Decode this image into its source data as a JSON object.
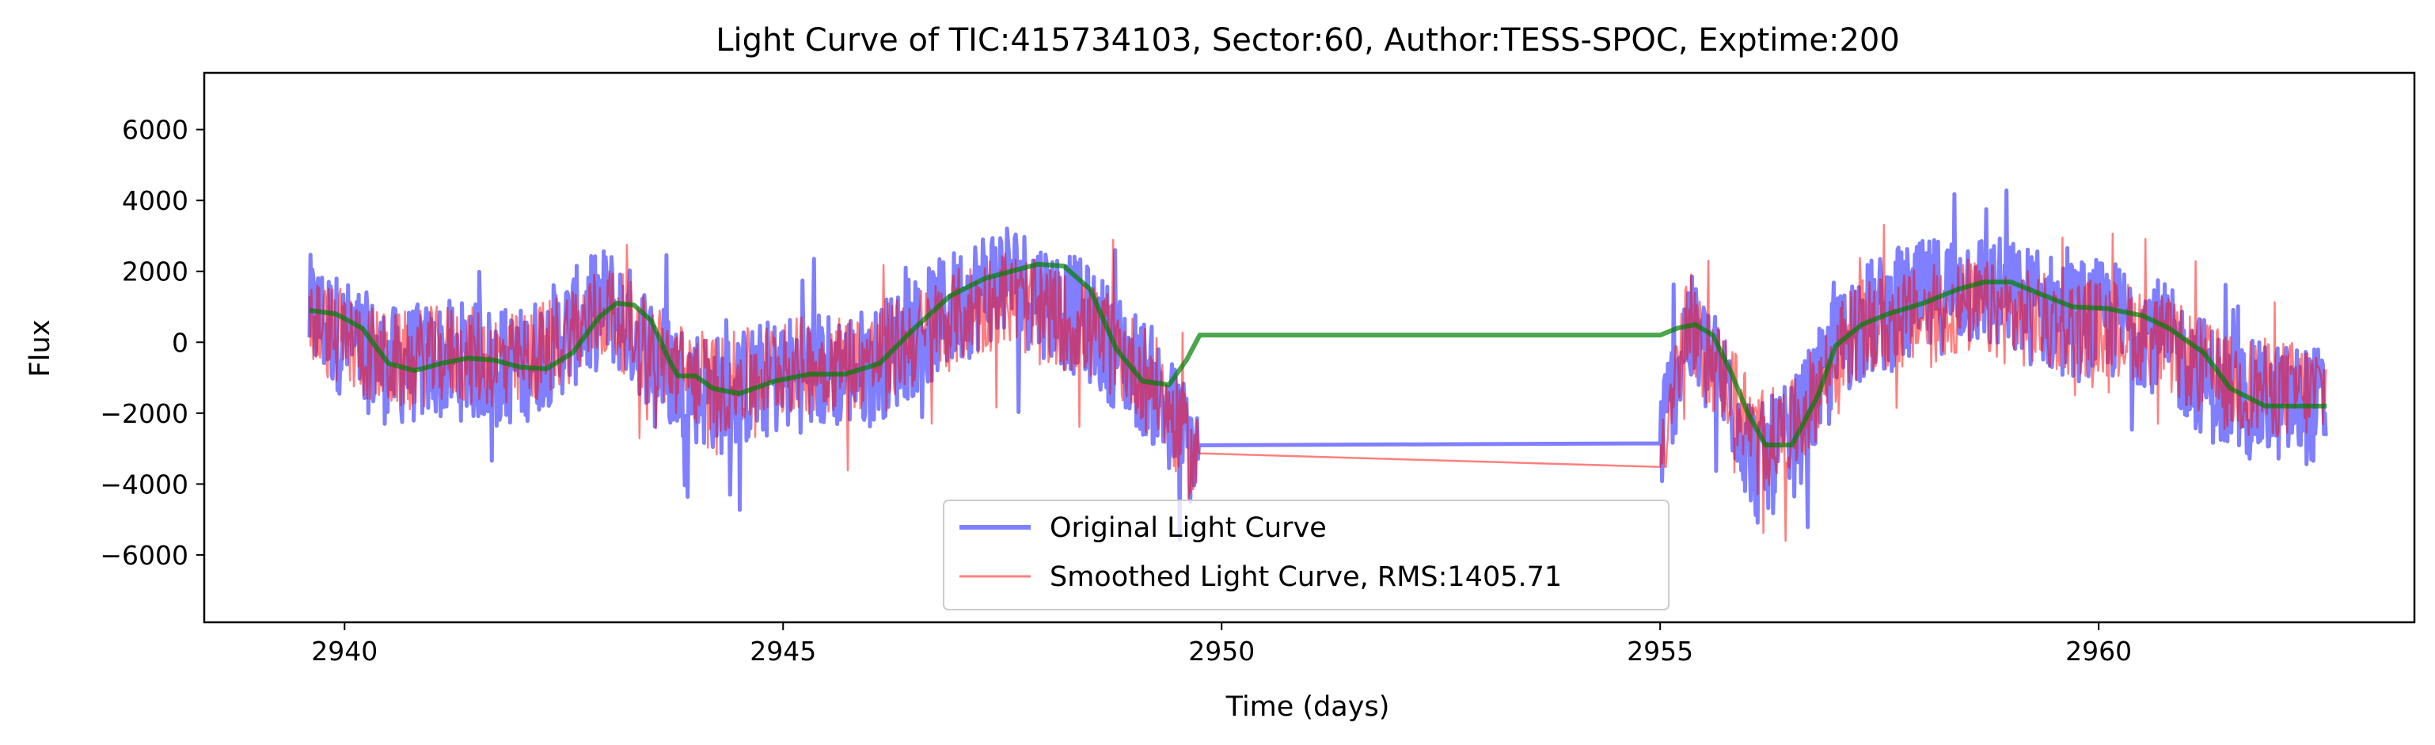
{
  "chart_data": {
    "type": "line",
    "title": "Light Curve of TIC:415734103, Sector:60, Author:TESS-SPOC, Exptime:200",
    "xlabel": "Time (days)",
    "ylabel": "Flux",
    "xlim": [
      2938.4,
      2963.6
    ],
    "ylim": [
      -7900,
      7600
    ],
    "xticks": [
      2940,
      2945,
      2950,
      2955,
      2960
    ],
    "yticks": [
      -6000,
      -4000,
      -2000,
      0,
      2000,
      4000,
      6000
    ],
    "grid": false,
    "legend_position": "lower center",
    "colors": {
      "original": "#0000ff",
      "smoothed": "#ff0000",
      "trend": "#008000"
    },
    "segments": [
      [
        2939.6,
        2949.75
      ],
      [
        2955.0,
        2962.6
      ]
    ],
    "series": [
      {
        "name": "Original Light Curve",
        "role": "original",
        "noise_amplitude": 1700,
        "envelope": [
          [
            2939.6,
            800
          ],
          [
            2940.5,
            -700
          ],
          [
            2941.2,
            -500
          ],
          [
            2942.0,
            -700
          ],
          [
            2943.0,
            1100
          ],
          [
            2943.8,
            -1000
          ],
          [
            2944.3,
            -1500
          ],
          [
            2945.0,
            -900
          ],
          [
            2946.0,
            -700
          ],
          [
            2947.5,
            1900
          ],
          [
            2948.5,
            500
          ],
          [
            2949.2,
            -1200
          ],
          [
            2949.7,
            -3200
          ],
          [
            2955.0,
            -2800
          ],
          [
            2955.3,
            400
          ],
          [
            2955.8,
            -1500
          ],
          [
            2956.1,
            -3500
          ],
          [
            2956.5,
            -2800
          ],
          [
            2957.2,
            500
          ],
          [
            2958.5,
            1600
          ],
          [
            2959.5,
            800
          ],
          [
            2960.5,
            500
          ],
          [
            2961.5,
            -1600
          ],
          [
            2962.6,
            -1800
          ]
        ]
      },
      {
        "name": "Smoothed Light Curve, RMS:1405.71",
        "role": "smoothed",
        "noise_amplitude": 1400,
        "envelope": [
          [
            2939.6,
            600
          ],
          [
            2940.5,
            -600
          ],
          [
            2941.2,
            -300
          ],
          [
            2942.0,
            -600
          ],
          [
            2943.0,
            900
          ],
          [
            2943.8,
            -800
          ],
          [
            2944.3,
            -1200
          ],
          [
            2945.0,
            -700
          ],
          [
            2946.0,
            -500
          ],
          [
            2947.5,
            1300
          ],
          [
            2948.5,
            300
          ],
          [
            2949.2,
            -1000
          ],
          [
            2949.7,
            -3400
          ],
          [
            2955.0,
            -3000
          ],
          [
            2955.3,
            300
          ],
          [
            2955.8,
            -1200
          ],
          [
            2956.1,
            -2800
          ],
          [
            2956.5,
            -2500
          ],
          [
            2957.2,
            300
          ],
          [
            2958.5,
            1000
          ],
          [
            2959.5,
            500
          ],
          [
            2960.5,
            300
          ],
          [
            2961.5,
            -1200
          ],
          [
            2962.6,
            -1400
          ]
        ]
      },
      {
        "role": "trend",
        "points": [
          [
            2939.6,
            900
          ],
          [
            2939.9,
            800
          ],
          [
            2940.2,
            400
          ],
          [
            2940.5,
            -600
          ],
          [
            2940.8,
            -800
          ],
          [
            2941.1,
            -600
          ],
          [
            2941.4,
            -450
          ],
          [
            2941.7,
            -500
          ],
          [
            2942.0,
            -700
          ],
          [
            2942.3,
            -750
          ],
          [
            2942.6,
            -300
          ],
          [
            2942.9,
            700
          ],
          [
            2943.1,
            1100
          ],
          [
            2943.3,
            1050
          ],
          [
            2943.5,
            600
          ],
          [
            2943.7,
            -500
          ],
          [
            2943.8,
            -950
          ],
          [
            2944.0,
            -950
          ],
          [
            2944.2,
            -1300
          ],
          [
            2944.5,
            -1450
          ],
          [
            2944.9,
            -1100
          ],
          [
            2945.3,
            -900
          ],
          [
            2945.7,
            -900
          ],
          [
            2946.1,
            -600
          ],
          [
            2946.5,
            400
          ],
          [
            2946.9,
            1300
          ],
          [
            2947.3,
            1800
          ],
          [
            2947.6,
            2000
          ],
          [
            2947.9,
            2200
          ],
          [
            2948.2,
            2150
          ],
          [
            2948.5,
            1500
          ],
          [
            2948.8,
            -200
          ],
          [
            2949.1,
            -1100
          ],
          [
            2949.4,
            -1200
          ],
          [
            2949.6,
            -500
          ],
          [
            2949.75,
            200
          ],
          [
            2955.0,
            200
          ],
          [
            2955.2,
            400
          ],
          [
            2955.4,
            500
          ],
          [
            2955.6,
            200
          ],
          [
            2955.8,
            -800
          ],
          [
            2956.0,
            -2000
          ],
          [
            2956.2,
            -2900
          ],
          [
            2956.5,
            -2900
          ],
          [
            2956.8,
            -1500
          ],
          [
            2957.0,
            -100
          ],
          [
            2957.3,
            500
          ],
          [
            2957.6,
            800
          ],
          [
            2958.0,
            1100
          ],
          [
            2958.4,
            1500
          ],
          [
            2958.7,
            1700
          ],
          [
            2959.0,
            1700
          ],
          [
            2959.4,
            1300
          ],
          [
            2959.7,
            1000
          ],
          [
            2960.1,
            950
          ],
          [
            2960.5,
            750
          ],
          [
            2960.8,
            400
          ],
          [
            2961.2,
            -300
          ],
          [
            2961.5,
            -1300
          ],
          [
            2961.9,
            -1800
          ],
          [
            2962.6,
            -1800
          ]
        ]
      }
    ]
  }
}
